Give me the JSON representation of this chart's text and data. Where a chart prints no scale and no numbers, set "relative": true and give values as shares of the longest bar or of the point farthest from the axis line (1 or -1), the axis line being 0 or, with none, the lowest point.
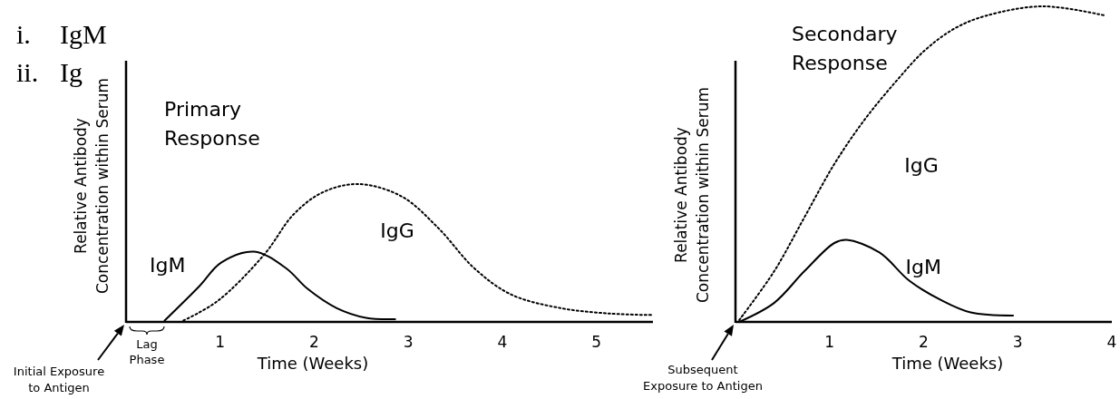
{
  "chart_data": [
    {
      "type": "line",
      "title": "Primary Response",
      "xlabel": "Time (Weeks)",
      "ylabel": "Relative Antibody Concentration within Serum",
      "relative": true,
      "xlim": [
        0,
        5.6
      ],
      "xticks": [
        1,
        2,
        3,
        4,
        5
      ],
      "annotations": [
        "i.",
        "IgM",
        "ii.",
        "Ig",
        "Lag Phase",
        "Initial Exposure to Antigen"
      ],
      "series": [
        {
          "name": "IgM",
          "color": "#000000",
          "line_style": "solid",
          "x": [
            0.41,
            0.78,
            1.01,
            1.36,
            1.7,
            1.93,
            2.24,
            2.55,
            2.86
          ],
          "values": [
            0.01,
            0.26,
            0.43,
            0.51,
            0.39,
            0.24,
            0.1,
            0.03,
            0.02
          ]
        },
        {
          "name": "IgG",
          "color": "#000000",
          "line_style": "dotted",
          "x": [
            0.61,
            0.97,
            1.47,
            1.78,
            2.09,
            2.47,
            2.93,
            3.32,
            3.7,
            4.09,
            4.62,
            5.16,
            5.6
          ],
          "values": [
            0.01,
            0.15,
            0.49,
            0.78,
            0.94,
            1,
            0.91,
            0.68,
            0.39,
            0.2,
            0.1,
            0.06,
            0.05
          ]
        }
      ]
    },
    {
      "type": "line",
      "title": "Secondary Response",
      "xlabel": "Time (Weeks)",
      "ylabel": "Relative Antibody Concentration within Serum",
      "relative": true,
      "xlim": [
        0,
        4
      ],
      "xticks": [
        1,
        2,
        3,
        4
      ],
      "annotations": [
        "Subsequent Exposure to Antigen"
      ],
      "series": [
        {
          "name": "IgG",
          "color": "#000000",
          "line_style": "dotted",
          "x": [
            0.04,
            0.41,
            0.73,
            1.05,
            1.37,
            1.7,
            2.01,
            2.33,
            2.66,
            3.27,
            3.94
          ],
          "values": [
            0.006,
            0.16,
            0.33,
            0.5,
            0.64,
            0.76,
            0.86,
            0.93,
            0.97,
            1,
            0.97
          ]
        },
        {
          "name": "IgM",
          "color": "#000000",
          "line_style": "solid",
          "x": [
            0.04,
            0.41,
            0.73,
            1.05,
            1.18,
            1.53,
            1.85,
            2.18,
            2.5,
            2.95
          ],
          "values": [
            0,
            0.06,
            0.16,
            0.25,
            0.26,
            0.22,
            0.13,
            0.07,
            0.03,
            0.02
          ]
        }
      ]
    }
  ]
}
